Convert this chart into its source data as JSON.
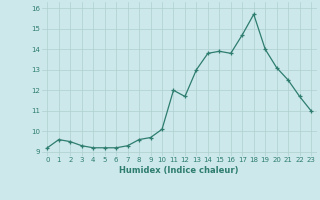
{
  "x": [
    0,
    1,
    2,
    3,
    4,
    5,
    6,
    7,
    8,
    9,
    10,
    11,
    12,
    13,
    14,
    15,
    16,
    17,
    18,
    19,
    20,
    21,
    22,
    23
  ],
  "y": [
    9.2,
    9.6,
    9.5,
    9.3,
    9.2,
    9.2,
    9.2,
    9.3,
    9.6,
    9.7,
    10.1,
    12.0,
    11.7,
    13.0,
    13.8,
    13.9,
    13.8,
    14.7,
    15.7,
    14.0,
    13.1,
    12.5,
    11.7,
    11.0
  ],
  "xlabel": "Humidex (Indice chaleur)",
  "xlim": [
    -0.5,
    23.5
  ],
  "ylim": [
    8.8,
    16.3
  ],
  "yticks": [
    9,
    10,
    11,
    12,
    13,
    14,
    15,
    16
  ],
  "xticks": [
    0,
    1,
    2,
    3,
    4,
    5,
    6,
    7,
    8,
    9,
    10,
    11,
    12,
    13,
    14,
    15,
    16,
    17,
    18,
    19,
    20,
    21,
    22,
    23
  ],
  "line_color": "#2e7d6e",
  "marker": "+",
  "bg_color": "#cce8ea",
  "grid_color": "#aed0d0",
  "tick_color": "#2e7d6e",
  "xlabel_color": "#2e7d6e"
}
